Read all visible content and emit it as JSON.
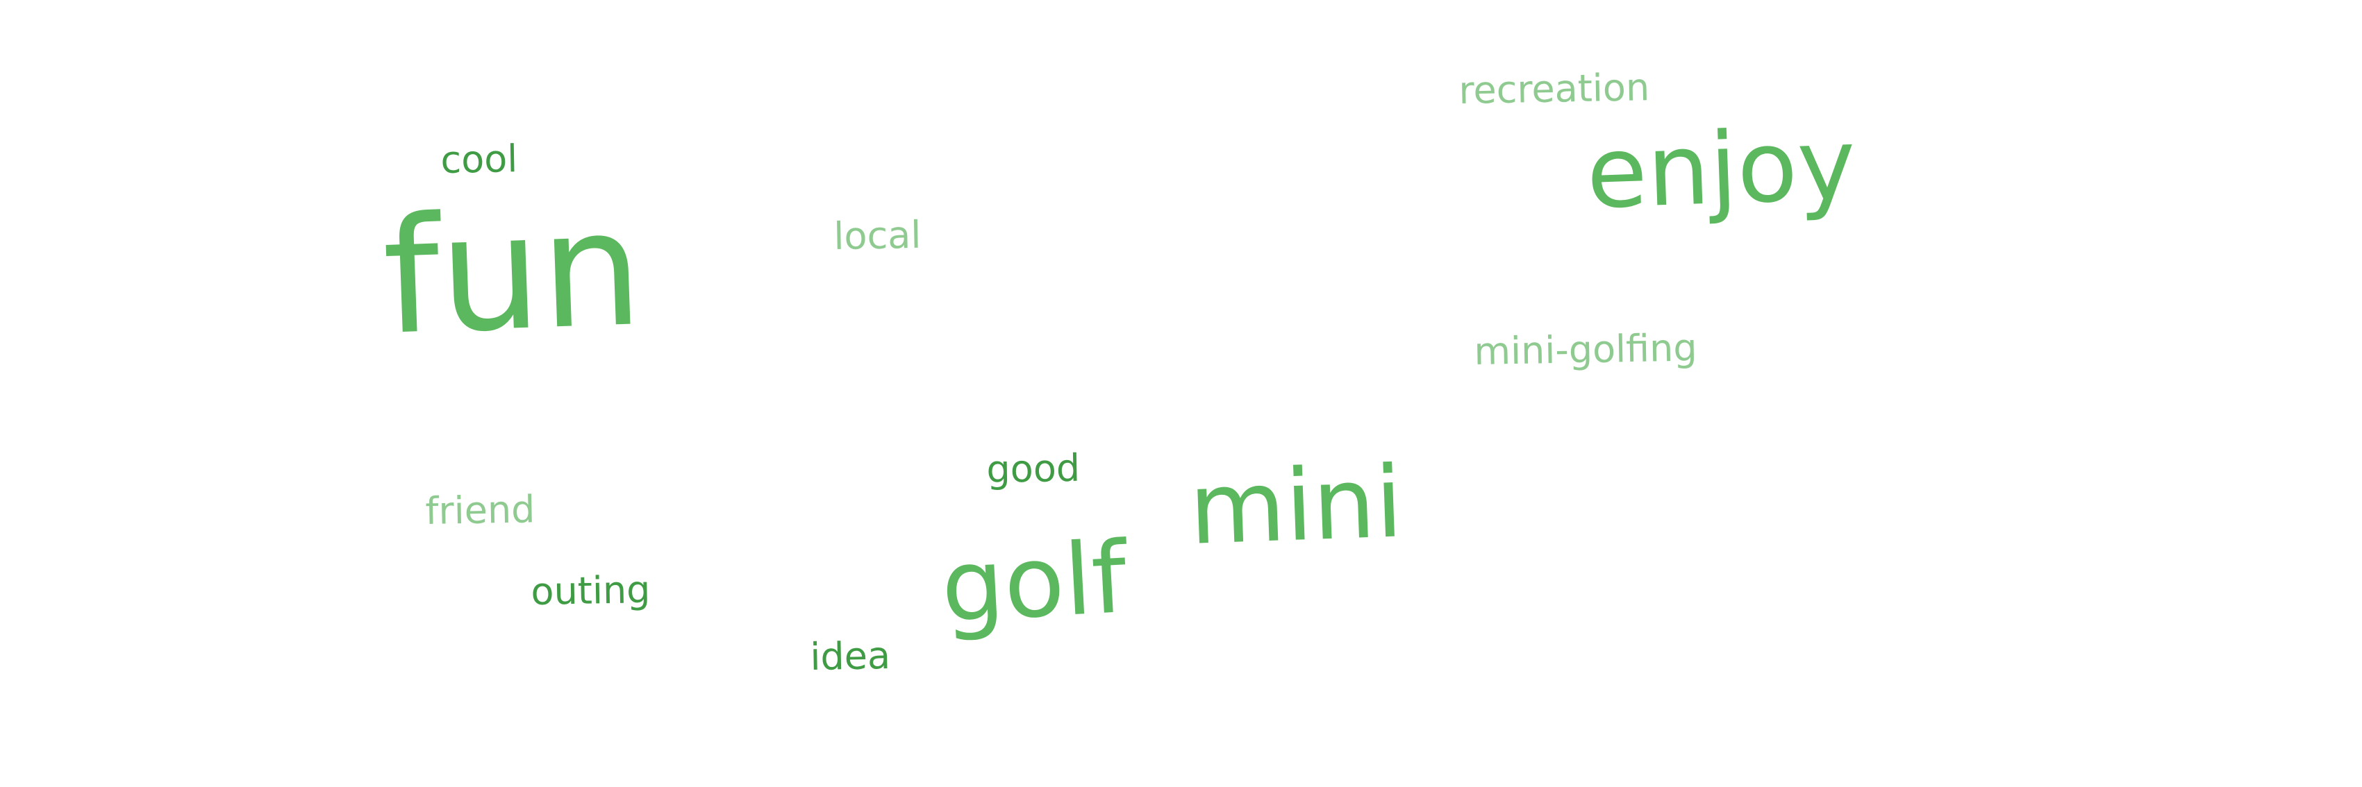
{
  "word_cloud": {
    "words": [
      {
        "text": "fun",
        "weight": 1.0,
        "color": "#5cb85f"
      },
      {
        "text": "enjoy",
        "weight": 0.7,
        "color": "#5cb85f"
      },
      {
        "text": "mini",
        "weight": 0.7,
        "color": "#5cb85f"
      },
      {
        "text": "golf",
        "weight": 0.7,
        "color": "#5cb85f"
      },
      {
        "text": "recreation",
        "weight": 0.2,
        "color": "#8fcb91"
      },
      {
        "text": "cool",
        "weight": 0.2,
        "color": "#3f9b44"
      },
      {
        "text": "local",
        "weight": 0.2,
        "color": "#8fcb91"
      },
      {
        "text": "mini-golfing",
        "weight": 0.2,
        "color": "#8fcb91"
      },
      {
        "text": "good",
        "weight": 0.2,
        "color": "#3f9b44"
      },
      {
        "text": "friend",
        "weight": 0.2,
        "color": "#8fcb91"
      },
      {
        "text": "outing",
        "weight": 0.2,
        "color": "#3f9b44"
      },
      {
        "text": "idea",
        "weight": 0.2,
        "color": "#3f9b44"
      }
    ]
  }
}
